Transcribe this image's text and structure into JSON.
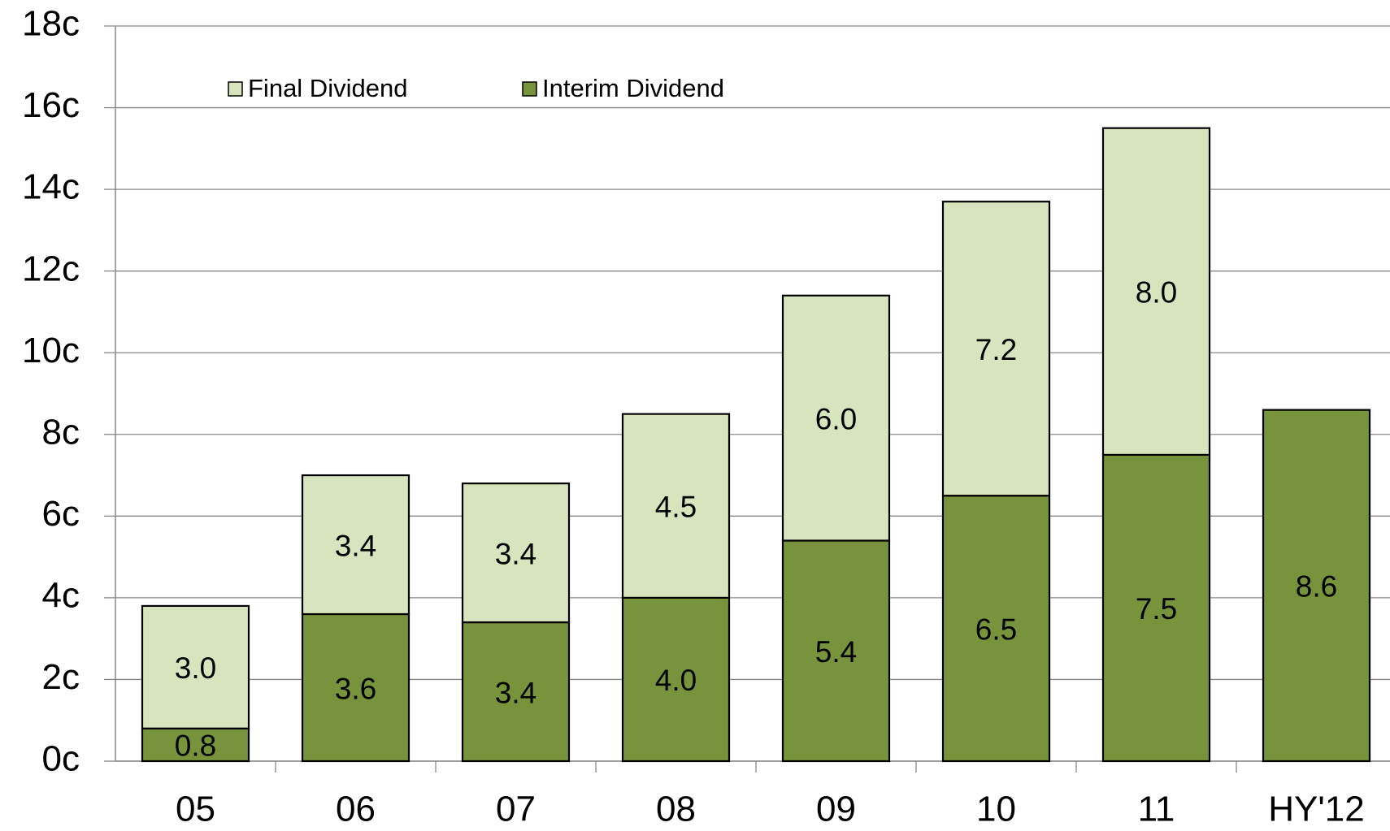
{
  "chart_data": {
    "type": "stacked_bar",
    "categories": [
      "05",
      "06",
      "07",
      "08",
      "09",
      "10",
      "11",
      "HY'12"
    ],
    "series": [
      {
        "name": "Final Dividend",
        "color": "#d7e4bd",
        "values": [
          3.0,
          3.4,
          3.4,
          4.5,
          6.0,
          7.2,
          8.0,
          null
        ],
        "value_labels": [
          "3.0",
          "3.4",
          "3.4",
          "4.5",
          "6.0",
          "7.2",
          "8.0",
          null
        ]
      },
      {
        "name": "Interim Dividend",
        "color": "#77933c",
        "values": [
          0.8,
          3.6,
          3.4,
          4.0,
          5.4,
          6.5,
          7.5,
          8.6
        ],
        "value_labels": [
          "0.8",
          "3.6",
          "3.4",
          "4.0",
          "5.4",
          "6.5",
          "7.5",
          "8.6"
        ]
      }
    ],
    "ylim": [
      0,
      18
    ],
    "yticks": [
      {
        "value": 0,
        "label": "0c"
      },
      {
        "value": 2,
        "label": "2c"
      },
      {
        "value": 4,
        "label": "4c"
      },
      {
        "value": 6,
        "label": "6c"
      },
      {
        "value": 8,
        "label": "8c"
      },
      {
        "value": 10,
        "label": "10c"
      },
      {
        "value": 12,
        "label": "12c"
      },
      {
        "value": 14,
        "label": "14c"
      },
      {
        "value": 16,
        "label": "16c"
      },
      {
        "value": 18,
        "label": "18c"
      }
    ],
    "grid": true,
    "legend": "top-left"
  }
}
